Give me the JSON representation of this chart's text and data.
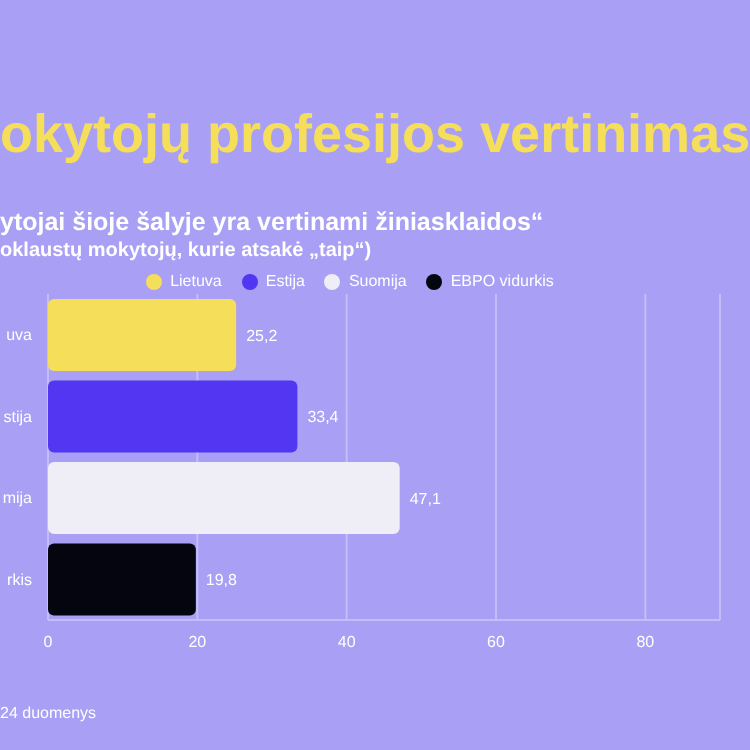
{
  "chart_data": {
    "type": "bar",
    "orientation": "horizontal",
    "stacked": true,
    "title": "okytojų profesijos vertinimas",
    "subtitle": "ytojai šioje šalyje yra vertinami žiniasklaidos“\noklaustų mokytojų, kurie atsakė „taip“)",
    "annotations": [
      "24 duomenys"
    ],
    "categories": [
      "uva",
      "stija",
      "mija",
      "rkis"
    ],
    "series": [
      {
        "name": "Lietuva",
        "color": "#f5df5a",
        "values": [
          25.2,
          null,
          null,
          null
        ],
        "value_labels": [
          "25,2",
          null,
          null,
          null
        ]
      },
      {
        "name": "Estija",
        "color": "#5236f2",
        "values": [
          null,
          33.4,
          null,
          null
        ],
        "value_labels": [
          null,
          "33,4",
          null,
          null
        ]
      },
      {
        "name": "Suomija",
        "color": "#efeef6",
        "values": [
          null,
          null,
          47.1,
          null
        ],
        "value_labels": [
          null,
          null,
          "47,1",
          null
        ]
      },
      {
        "name": "EBPO vidurkis",
        "color": "#050510",
        "values": [
          null,
          null,
          null,
          19.8
        ],
        "value_labels": [
          null,
          null,
          null,
          "19,8"
        ]
      }
    ],
    "xlim": [
      0,
      90
    ],
    "xticks": [
      0,
      20,
      40,
      60,
      80
    ],
    "grid": "x",
    "legend": "top"
  }
}
